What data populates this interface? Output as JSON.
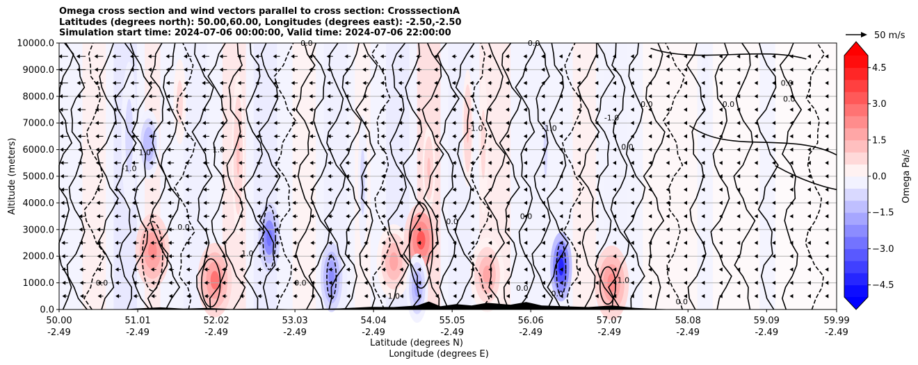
{
  "chart_data": {
    "type": "contourf",
    "title_lines": [
      "Omega cross section and wind vectors parallel to cross section: CrosssectionA",
      "Latitudes (degrees north): 50.00,60.00, Longitudes (degrees east): -2.50,-2.50",
      "Simulation start time: 2024-07-06 00:00:00, Valid time: 2024-07-06 22:00:00"
    ],
    "ylabel": "Altitude (meters)",
    "xlabel_lines": [
      "Latitude (degrees N)",
      "Longitude (degrees E)"
    ],
    "ylim": [
      0,
      10000
    ],
    "xlim": [
      50.0,
      59.99
    ],
    "y_ticks": [
      0,
      1000,
      2000,
      3000,
      4000,
      5000,
      6000,
      7000,
      8000,
      9000,
      10000
    ],
    "y_tick_labels": [
      "0.0",
      "1000.0",
      "2000.0",
      "3000.0",
      "4000.0",
      "5000.0",
      "6000.0",
      "7000.0",
      "8000.0",
      "9000.0",
      "10000.0"
    ],
    "x_ticks": [
      50.0,
      51.01,
      52.02,
      53.03,
      54.04,
      55.05,
      56.06,
      57.07,
      58.08,
      59.09,
      59.99
    ],
    "x_tick_labels": [
      "50.00",
      "51.01",
      "52.02",
      "53.03",
      "54.04",
      "55.05",
      "56.06",
      "57.07",
      "58.08",
      "59.09",
      "59.99"
    ],
    "x_tick_labels_lon": [
      "-2.49",
      "-2.49",
      "-2.49",
      "-2.49",
      "-2.49",
      "-2.49",
      "-2.49",
      "-2.49",
      "-2.49",
      "-2.49",
      "-2.49"
    ],
    "grid": "horizontal",
    "colorbar": {
      "label": "Omega Pa/s",
      "range": [
        -5.0,
        5.0
      ],
      "levels": 20,
      "tick_values": [
        4.5,
        3.0,
        1.5,
        0.0,
        -1.5,
        -3.0,
        -4.5
      ],
      "tick_labels": [
        "4.5",
        "3.0",
        "1.5",
        "0.0",
        "−1.5",
        "−3.0",
        "−4.5"
      ],
      "colors": [
        "#0000ff",
        "#ff0000",
        "#ffffff"
      ]
    },
    "quiver_key": {
      "label": "50 m/s"
    },
    "contour_levels": [
      -1.0,
      0.0,
      1.0
    ],
    "contour_label_texts": [
      "0.0",
      "1.0",
      "-1.0"
    ],
    "features": {
      "positive_omega_cores": [
        {
          "lat": 51.2,
          "alt": 2200,
          "value": 2.0
        },
        {
          "lat": 52.0,
          "alt": 1100,
          "value": 2.5
        },
        {
          "lat": 54.3,
          "alt": 1800,
          "value": 1.5
        },
        {
          "lat": 54.65,
          "alt": 2600,
          "value": 3.0
        },
        {
          "lat": 55.5,
          "alt": 1300,
          "value": 1.5
        },
        {
          "lat": 57.1,
          "alt": 1000,
          "value": 2.0
        }
      ],
      "negative_omega_cores": [
        {
          "lat": 51.15,
          "alt": 6200,
          "value": -1.5
        },
        {
          "lat": 52.7,
          "alt": 2700,
          "value": -3.0
        },
        {
          "lat": 53.5,
          "alt": 1200,
          "value": -2.5
        },
        {
          "lat": 54.6,
          "alt": 800,
          "value": -2.0
        },
        {
          "lat": 56.45,
          "alt": 1600,
          "value": -4.5
        }
      ]
    }
  }
}
